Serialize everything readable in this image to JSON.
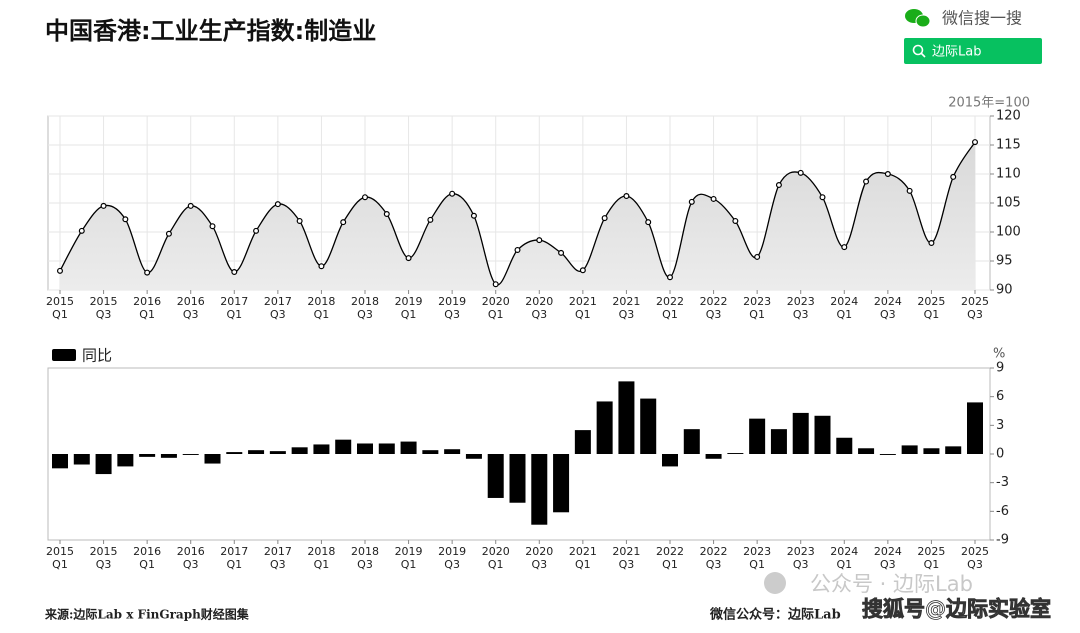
{
  "header": {
    "search_brand": "微信搜一搜",
    "search_button": "边际Lab"
  },
  "footer": {
    "source": "来源:边际Lab x FinGraph财经图集",
    "wechat": "微信公众号：边际Lab",
    "watermark": "公众号 · 边际Lab",
    "sohu": "搜狐号@边际实验室"
  },
  "chart_data": [
    {
      "type": "line",
      "title": "中国香港:工业生产指数:制造业",
      "unit_label": "2015年=100",
      "categories": [
        "2015\nQ1",
        null,
        "2015\nQ3",
        null,
        "2016\nQ1",
        null,
        "2016\nQ3",
        null,
        "2017\nQ1",
        null,
        "2017\nQ3",
        null,
        "2018\nQ1",
        null,
        "2018\nQ3",
        null,
        "2019\nQ1",
        null,
        "2019\nQ3",
        null,
        "2020\nQ1",
        null,
        "2020\nQ3",
        null,
        "2021\nQ1",
        null,
        "2021\nQ3",
        null,
        "2022\nQ1",
        null,
        "2022\nQ3",
        null,
        "2023\nQ1",
        null,
        "2023\nQ3",
        null,
        "2024\nQ1",
        null,
        "2024\nQ3",
        null,
        "2025\nQ1",
        null,
        "2025\nQ3"
      ],
      "values": [
        93.3,
        100.2,
        104.5,
        102.2,
        93.0,
        99.7,
        104.5,
        101.0,
        93.1,
        100.2,
        104.8,
        101.9,
        94.1,
        101.7,
        106.0,
        103.1,
        95.5,
        102.1,
        106.6,
        102.8,
        91.0,
        96.9,
        98.6,
        96.4,
        93.4,
        102.4,
        106.2,
        101.7,
        92.2,
        105.2,
        105.7,
        101.9,
        95.7,
        108.1,
        110.2,
        106.0,
        97.4,
        108.7,
        110.0,
        107.1,
        98.1,
        109.5,
        115.5
      ],
      "color": "#000000",
      "ylim": [
        90,
        120
      ],
      "yticks": [
        90,
        95,
        100,
        105,
        110,
        115,
        120
      ],
      "grid": true
    },
    {
      "type": "bar",
      "unit_label": "%",
      "categories": [
        "2015\nQ1",
        null,
        "2015\nQ3",
        null,
        "2016\nQ1",
        null,
        "2016\nQ3",
        null,
        "2017\nQ1",
        null,
        "2017\nQ3",
        null,
        "2018\nQ1",
        null,
        "2018\nQ3",
        null,
        "2019\nQ1",
        null,
        "2019\nQ3",
        null,
        "2020\nQ1",
        null,
        "2020\nQ3",
        null,
        "2021\nQ1",
        null,
        "2021\nQ3",
        null,
        "2022\nQ1",
        null,
        "2022\nQ3",
        null,
        "2023\nQ1",
        null,
        "2023\nQ3",
        null,
        "2024\nQ1",
        null,
        "2024\nQ3",
        null,
        "2025\nQ1",
        null,
        "2025\nQ3"
      ],
      "series": [
        {
          "name": "同比",
          "color": "#000000",
          "values": [
            -1.5,
            -1.1,
            -2.1,
            -1.3,
            -0.3,
            -0.4,
            -0.1,
            -1.0,
            0.2,
            0.4,
            0.3,
            0.7,
            1.0,
            1.5,
            1.1,
            1.1,
            1.3,
            0.4,
            0.5,
            -0.5,
            -4.6,
            -5.1,
            -7.4,
            -6.1,
            2.5,
            5.5,
            7.6,
            5.8,
            -1.3,
            2.6,
            -0.5,
            0.1,
            3.7,
            2.6,
            4.3,
            4.0,
            1.7,
            0.6,
            -0.1,
            0.9,
            0.6,
            0.8,
            5.4
          ]
        }
      ],
      "ylim": [
        -9,
        9
      ],
      "yticks": [
        -9,
        -6,
        -3,
        0,
        3,
        6,
        9
      ],
      "grid": false
    }
  ]
}
